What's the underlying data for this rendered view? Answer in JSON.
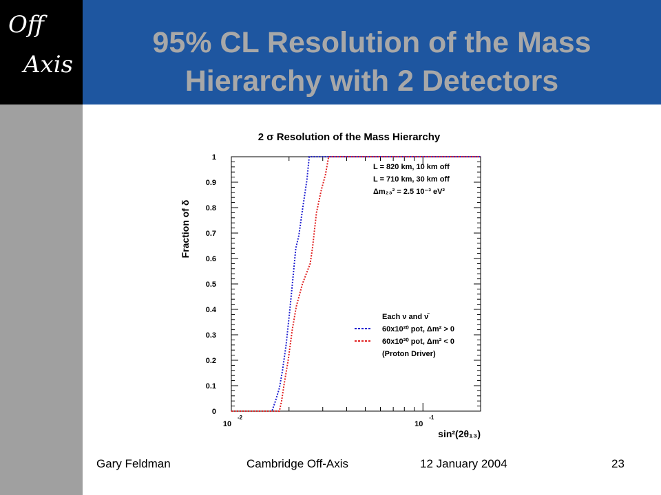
{
  "logo": {
    "line1": "Off",
    "line2": "Axis"
  },
  "slide": {
    "title_line1": "95% CL Resolution of the Mass",
    "title_line2": "Hierarchy with 2 Detectors"
  },
  "footer": {
    "author": "Gary Feldman",
    "event": "Cambridge Off-Axis",
    "date": "12 January 2004",
    "page": "23"
  },
  "colors": {
    "title_bar": "#1e56a0",
    "side_bar": "#a0a0a0",
    "title_text": "#a8a8a8",
    "series_positive": "#2020d0",
    "series_negative": "#e02020"
  },
  "chart_data": {
    "type": "line",
    "title": "2 σ Resolution of the Mass Hierarchy",
    "xlabel": "sin²(2θ₁₃)",
    "ylabel": "Fraction of δ",
    "x_scale": "log",
    "xlim": [
      0.01,
      0.2
    ],
    "ylim": [
      0,
      1
    ],
    "x_ticks": [
      {
        "value": 0.01,
        "base": "10",
        "exp": "-2"
      },
      {
        "value": 0.1,
        "base": "10",
        "exp": "-1"
      }
    ],
    "y_ticks": [
      {
        "value": 0,
        "label": "0"
      },
      {
        "value": 0.1,
        "label": "0.1"
      },
      {
        "value": 0.2,
        "label": "0.2"
      },
      {
        "value": 0.3,
        "label": "0.3"
      },
      {
        "value": 0.4,
        "label": "0.4"
      },
      {
        "value": 0.5,
        "label": "0.5"
      },
      {
        "value": 0.6,
        "label": "0.6"
      },
      {
        "value": 0.7,
        "label": "0.7"
      },
      {
        "value": 0.8,
        "label": "0.8"
      },
      {
        "value": 0.9,
        "label": "0.9"
      },
      {
        "value": 1,
        "label": "1"
      }
    ],
    "annotations": [
      "L = 820 km, 10 km off",
      "L = 710 km, 30 km off",
      "Δm₂₃² = 2.5 10⁻³ eV²"
    ],
    "legend_header": "Each ν and ν̄",
    "legend_footer": "(Proton Driver)",
    "legend_position": "lower-right",
    "series": [
      {
        "name": "60x10²⁰ pot, Δm² > 0",
        "color": "#2020d0",
        "x": [
          0.01,
          0.0163,
          0.017,
          0.0178,
          0.0185,
          0.0193,
          0.0202,
          0.021,
          0.0217,
          0.0225,
          0.0235,
          0.0248,
          0.0255,
          0.2
        ],
        "y": [
          0,
          0,
          0.04,
          0.09,
          0.16,
          0.26,
          0.4,
          0.53,
          0.64,
          0.69,
          0.79,
          0.91,
          1.0,
          1.0
        ]
      },
      {
        "name": "60x10²⁰ pot, Δm² < 0",
        "color": "#e02020",
        "x": [
          0.01,
          0.0178,
          0.0183,
          0.0188,
          0.0198,
          0.0208,
          0.0218,
          0.0235,
          0.0258,
          0.0265,
          0.0278,
          0.0295,
          0.031,
          0.0322,
          0.2
        ],
        "y": [
          0,
          0,
          0.04,
          0.1,
          0.2,
          0.32,
          0.41,
          0.5,
          0.58,
          0.64,
          0.78,
          0.87,
          0.93,
          1.0,
          1.0
        ]
      }
    ]
  }
}
